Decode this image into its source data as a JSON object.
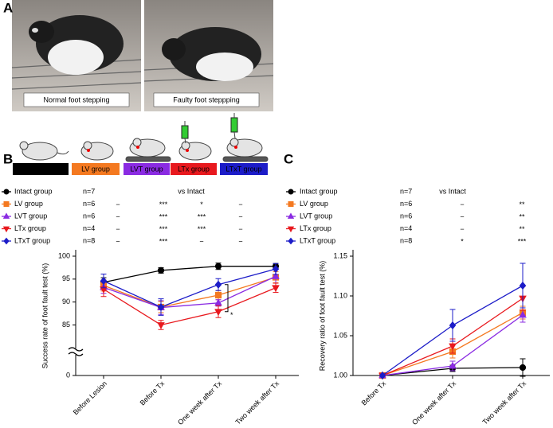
{
  "panel_labels": [
    "A",
    "B",
    "C"
  ],
  "photos": [
    {
      "caption": "Normal foot stepping"
    },
    {
      "caption": "Faulty foot steppping"
    }
  ],
  "groups": [
    {
      "label": "Intact group",
      "color": "#000000"
    },
    {
      "label": "LV group",
      "color": "#f47920"
    },
    {
      "label": "LVT group",
      "color": "#8a2be2"
    },
    {
      "label": "LTx group",
      "color": "#e8191e"
    },
    {
      "label": "LTxT group",
      "color": "#1c1cc8"
    }
  ],
  "chart_data": [
    {
      "type": "line",
      "ylabel": "Success rate of foot fault test (%)",
      "categories": [
        "Before Lesion",
        "Before Tx",
        "One week after Tx",
        "Two week after Tx"
      ],
      "ylim": [
        0,
        100
      ],
      "axis_break": [
        0,
        83
      ],
      "yticks": [
        0,
        85,
        90,
        95,
        100
      ],
      "comparison_label": "vs Intact",
      "series": [
        {
          "name": "Intact group",
          "n": "n=7",
          "color": "#000000",
          "marker": "circle",
          "values": [
            94.3,
            96.9,
            97.8,
            97.8
          ],
          "errors": [
            1.0,
            0.6,
            0.7,
            0.6
          ],
          "significance": []
        },
        {
          "name": "LV group",
          "n": "n=6",
          "color": "#f47920",
          "marker": "square",
          "values": [
            93.6,
            88.9,
            91.5,
            95.4
          ],
          "errors": [
            1.2,
            1.2,
            1.0,
            1.2
          ],
          "significance": [
            "−",
            "***",
            "*",
            "−"
          ]
        },
        {
          "name": "LVT group",
          "n": "n=6",
          "color": "#8a2be2",
          "marker": "triangle-up",
          "values": [
            93.2,
            88.8,
            89.8,
            95.6
          ],
          "errors": [
            1.3,
            1.5,
            0.7,
            1.5
          ],
          "significance": [
            "−",
            "***",
            "***",
            "−"
          ]
        },
        {
          "name": "LTx group",
          "n": "n=4",
          "color": "#e8191e",
          "marker": "triangle-down",
          "values": [
            92.8,
            85.0,
            87.9,
            93.1
          ],
          "errors": [
            1.6,
            1.0,
            1.3,
            1.0
          ],
          "significance": [
            "−",
            "***",
            "***",
            "−"
          ]
        },
        {
          "name": "LTxT group",
          "n": "n=8",
          "color": "#1c1cc8",
          "marker": "diamond",
          "values": [
            94.6,
            88.9,
            93.8,
            97.2
          ],
          "errors": [
            1.5,
            1.8,
            1.3,
            1.2
          ],
          "significance": [
            "−",
            "***",
            "−",
            "−"
          ]
        }
      ],
      "annotations": [
        {
          "text": "*",
          "category": 2,
          "between": [
            4,
            3
          ]
        }
      ]
    },
    {
      "type": "line",
      "ylabel": "Recovery ratio of foot fault test (%)",
      "categories": [
        "Before Tx",
        "One week after Tx",
        "Two week after Tx"
      ],
      "ylim": [
        1.0,
        1.15
      ],
      "yticks": [
        {
          "value": 1.0,
          "label": "1.00"
        },
        {
          "value": 1.05,
          "label": "1.05"
        },
        {
          "value": 1.1,
          "label": "1.10"
        },
        {
          "value": 1.15,
          "label": "1.15"
        }
      ],
      "comparison_label": "vs Intact",
      "series": [
        {
          "name": "Intact group",
          "n": "n=7",
          "color": "#000000",
          "marker": "circle",
          "values": [
            1.0,
            1.009,
            1.01
          ],
          "errors": [
            0,
            0.004,
            0.011
          ],
          "significance": []
        },
        {
          "name": "LV group",
          "n": "n=6",
          "color": "#f47920",
          "marker": "square",
          "values": [
            1.0,
            1.03,
            1.079
          ],
          "errors": [
            0,
            0.008,
            0.008
          ],
          "significance": [
            "−",
            "**"
          ]
        },
        {
          "name": "LVT group",
          "n": "n=6",
          "color": "#8a2be2",
          "marker": "triangle-up",
          "values": [
            1.0,
            1.012,
            1.076
          ],
          "errors": [
            0,
            0.006,
            0.009
          ],
          "significance": [
            "−",
            "**"
          ]
        },
        {
          "name": "LTx group",
          "n": "n=4",
          "color": "#e8191e",
          "marker": "triangle-down",
          "values": [
            1.0,
            1.037,
            1.097
          ],
          "errors": [
            0,
            0.009,
            0.015
          ],
          "significance": [
            "−",
            "**"
          ]
        },
        {
          "name": "LTxT group",
          "n": "n=8",
          "color": "#1c1cc8",
          "marker": "diamond",
          "values": [
            1.0,
            1.063,
            1.113
          ],
          "errors": [
            0,
            0.02,
            0.028
          ],
          "significance": [
            "*",
            "***"
          ]
        }
      ]
    }
  ]
}
